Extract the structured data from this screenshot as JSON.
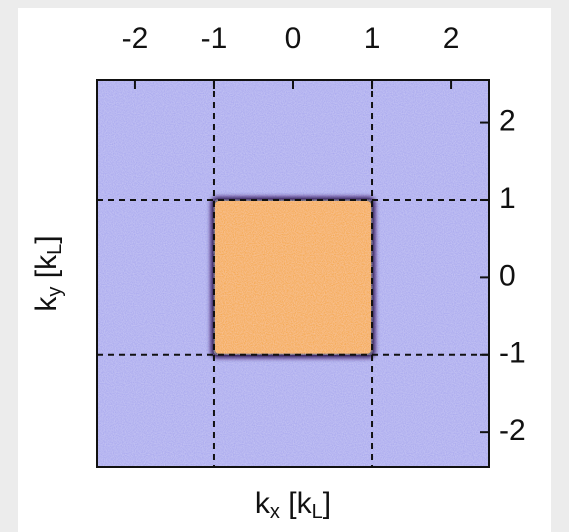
{
  "chart_data": {
    "type": "heatmap",
    "xlabel": [
      "k",
      "x",
      " [k",
      "L",
      "]"
    ],
    "ylabel": [
      "k",
      "y",
      " [k",
      "L",
      "]"
    ],
    "xlim": [
      -2.48,
      2.48
    ],
    "ylim": [
      -2.45,
      2.55
    ],
    "xticks": [
      -2,
      -1,
      0,
      1,
      2
    ],
    "yticks": [
      2,
      1,
      0,
      -1,
      -2
    ],
    "xgrid": [
      -1,
      1
    ],
    "ygrid": [
      -1,
      1
    ],
    "background_color": "#a3a2ee",
    "region": {
      "x": [
        -1,
        1
      ],
      "y": [
        -1,
        1
      ],
      "color": "#f5a11f",
      "edge_color": "#2a1050"
    }
  }
}
